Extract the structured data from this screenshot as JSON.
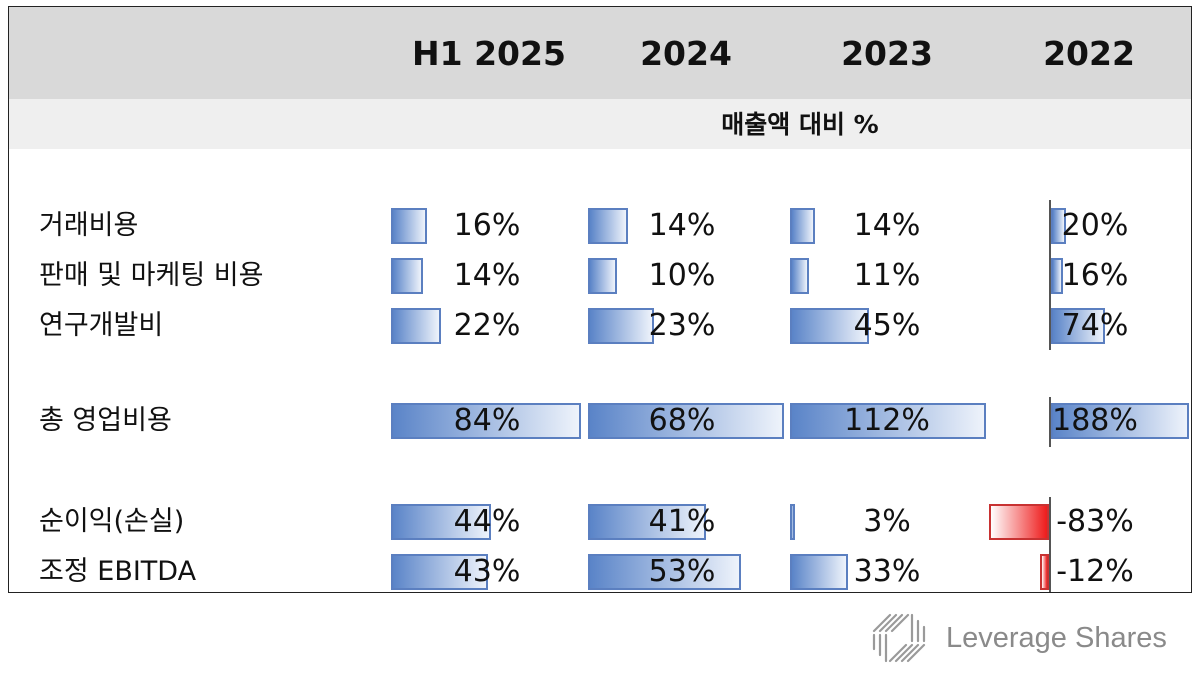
{
  "chart_data": {
    "type": "table",
    "columns": [
      "H1 2025",
      "2024",
      "2023",
      "2022"
    ],
    "subtitle": "매출액 대비 %",
    "rows": [
      {
        "label": "거래비용",
        "values": [
          16,
          14,
          14,
          20
        ],
        "display": [
          "16%",
          "14%",
          "14%",
          "20%"
        ]
      },
      {
        "label": "판매 및 마케팅 비용",
        "values": [
          14,
          10,
          11,
          16
        ],
        "display": [
          "14%",
          "10%",
          "11%",
          "16%"
        ]
      },
      {
        "label": "연구개발비",
        "values": [
          22,
          23,
          45,
          74
        ],
        "display": [
          "22%",
          "23%",
          "45%",
          "74%"
        ]
      },
      {
        "label": "총 영업비용",
        "values": [
          84,
          68,
          112,
          188
        ],
        "display": [
          "84%",
          "68%",
          "112%",
          "188%"
        ]
      },
      {
        "label": "순이익(손실)",
        "values": [
          44,
          41,
          3,
          -83
        ],
        "display": [
          "44%",
          "41%",
          "3%",
          "-83%"
        ]
      },
      {
        "label": "조정 EBITDA",
        "values": [
          43,
          53,
          33,
          -12
        ],
        "display": [
          "43%",
          "53%",
          "33%",
          "-12%"
        ]
      }
    ],
    "column_max": [
      84,
      68,
      112,
      188
    ],
    "colors": {
      "positive": "#5a84c8",
      "negative": "#ee1c1c",
      "header_bg": "#d9d9d9",
      "subheader_bg": "#efefef"
    }
  },
  "watermark": {
    "text": "Leverage Shares",
    "icon": "leverage-shares-logo-icon"
  }
}
